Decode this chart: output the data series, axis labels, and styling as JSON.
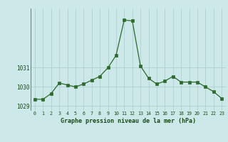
{
  "x": [
    0,
    1,
    2,
    3,
    4,
    5,
    6,
    7,
    8,
    9,
    10,
    11,
    12,
    13,
    14,
    15,
    16,
    17,
    18,
    19,
    20,
    21,
    22,
    23
  ],
  "y": [
    1029.35,
    1029.35,
    1029.65,
    1030.2,
    1030.1,
    1030.0,
    1030.15,
    1030.35,
    1030.55,
    1031.0,
    1031.65,
    1033.5,
    1033.45,
    1031.1,
    1030.45,
    1030.15,
    1030.3,
    1030.55,
    1030.25,
    1030.25,
    1030.25,
    1030.0,
    1029.75,
    1029.4
  ],
  "yticks": [
    1029,
    1030,
    1031
  ],
  "ylim": [
    1028.75,
    1034.1
  ],
  "xlim": [
    -0.5,
    23.5
  ],
  "line_color": "#2d6a2d",
  "marker_color": "#2d6a2d",
  "bg_color": "#cce8e8",
  "grid_color": "#aacccc",
  "axis_label_color": "#1a4a1a",
  "tick_color": "#1a4a1a",
  "xlabel": "Graphe pression niveau de la mer (hPa)",
  "xticks": [
    0,
    1,
    2,
    3,
    4,
    5,
    6,
    7,
    8,
    9,
    10,
    11,
    12,
    13,
    14,
    15,
    16,
    17,
    18,
    19,
    20,
    21,
    22,
    23
  ]
}
